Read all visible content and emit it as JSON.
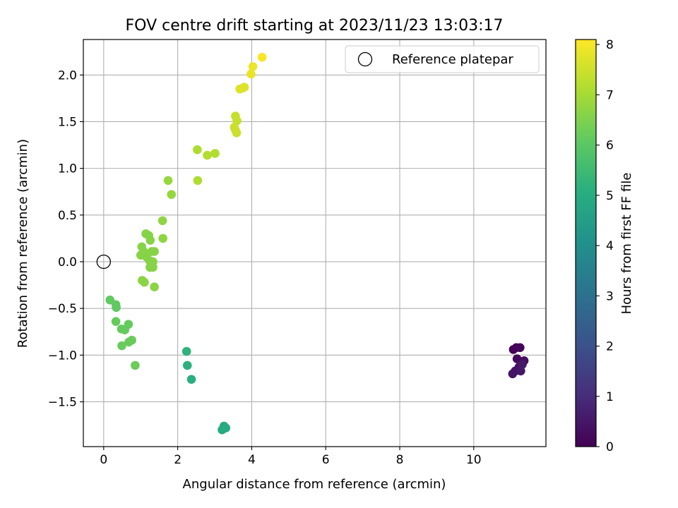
{
  "chart_data": {
    "type": "scatter",
    "title": "FOV centre drift starting at 2023/11/23 13:03:17",
    "xlabel": "Angular distance from reference (arcmin)",
    "ylabel": "Rotation from reference (arcmin)",
    "xlim": [
      -0.55,
      11.95
    ],
    "ylim": [
      -1.98,
      2.38
    ],
    "xticks": [
      0,
      2,
      4,
      6,
      8,
      10
    ],
    "yticks": [
      -1.5,
      -1.0,
      -0.5,
      0.0,
      0.5,
      1.0,
      1.5,
      2.0
    ],
    "xtick_labels": [
      "0",
      "2",
      "4",
      "6",
      "8",
      "10"
    ],
    "ytick_labels": [
      "−1.5",
      "−1.0",
      "−0.5",
      "0.0",
      "0.5",
      "1.0",
      "1.5",
      "2.0"
    ],
    "grid": true,
    "legend": {
      "label": "Reference platepar",
      "placement": "top-right"
    },
    "reference_point": {
      "x": 0,
      "y": 0
    },
    "colorbar": {
      "label": "Hours from first FF file",
      "colormap": "viridis",
      "range": [
        0,
        8.1
      ],
      "ticks": [
        0,
        1,
        2,
        3,
        4,
        5,
        6,
        7,
        8
      ],
      "tick_labels": [
        "0",
        "1",
        "2",
        "3",
        "4",
        "5",
        "6",
        "7",
        "8"
      ]
    },
    "points": [
      {
        "x": 11.07,
        "y": -0.94,
        "h": 0.05
      },
      {
        "x": 11.15,
        "y": -0.92,
        "h": 0.1
      },
      {
        "x": 11.25,
        "y": -0.92,
        "h": 0.15
      },
      {
        "x": 11.17,
        "y": -1.04,
        "h": 0.2
      },
      {
        "x": 11.28,
        "y": -1.07,
        "h": 0.25
      },
      {
        "x": 11.36,
        "y": -1.06,
        "h": 0.3
      },
      {
        "x": 11.22,
        "y": -1.13,
        "h": 0.35
      },
      {
        "x": 11.12,
        "y": -1.17,
        "h": 0.4
      },
      {
        "x": 11.05,
        "y": -1.2,
        "h": 0.45
      },
      {
        "x": 11.27,
        "y": -1.17,
        "h": 0.5
      },
      {
        "x": 11.31,
        "y": -1.1,
        "h": 0.55
      },
      {
        "x": 3.2,
        "y": -1.8,
        "h": 4.95
      },
      {
        "x": 3.25,
        "y": -1.76,
        "h": 4.95
      },
      {
        "x": 3.3,
        "y": -1.78,
        "h": 4.95
      },
      {
        "x": 2.37,
        "y": -1.26,
        "h": 5.1
      },
      {
        "x": 2.26,
        "y": -1.11,
        "h": 5.15
      },
      {
        "x": 2.24,
        "y": -0.96,
        "h": 5.2
      },
      {
        "x": 0.17,
        "y": -0.41,
        "h": 6.1
      },
      {
        "x": 0.33,
        "y": -0.46,
        "h": 6.1
      },
      {
        "x": 0.34,
        "y": -0.49,
        "h": 6.1
      },
      {
        "x": 0.33,
        "y": -0.64,
        "h": 6.15
      },
      {
        "x": 0.48,
        "y": -0.72,
        "h": 6.15
      },
      {
        "x": 0.57,
        "y": -0.73,
        "h": 6.15
      },
      {
        "x": 0.67,
        "y": -0.67,
        "h": 6.15
      },
      {
        "x": 0.76,
        "y": -0.84,
        "h": 6.2
      },
      {
        "x": 0.68,
        "y": -0.86,
        "h": 6.2
      },
      {
        "x": 0.49,
        "y": -0.9,
        "h": 6.2
      },
      {
        "x": 0.85,
        "y": -1.11,
        "h": 6.25
      },
      {
        "x": 1.03,
        "y": 0.16,
        "h": 6.6
      },
      {
        "x": 1.14,
        "y": 0.3,
        "h": 6.6
      },
      {
        "x": 1.22,
        "y": 0.28,
        "h": 6.6
      },
      {
        "x": 1.26,
        "y": 0.23,
        "h": 6.6
      },
      {
        "x": 1.0,
        "y": 0.07,
        "h": 6.6
      },
      {
        "x": 1.08,
        "y": 0.11,
        "h": 6.6
      },
      {
        "x": 1.16,
        "y": 0.05,
        "h": 6.6
      },
      {
        "x": 1.24,
        "y": 0.01,
        "h": 6.6
      },
      {
        "x": 1.3,
        "y": 0.11,
        "h": 6.6
      },
      {
        "x": 1.37,
        "y": 0.11,
        "h": 6.6
      },
      {
        "x": 1.33,
        "y": 0.0,
        "h": 6.6
      },
      {
        "x": 1.25,
        "y": -0.06,
        "h": 6.6
      },
      {
        "x": 1.33,
        "y": -0.06,
        "h": 6.6
      },
      {
        "x": 1.04,
        "y": -0.2,
        "h": 6.65
      },
      {
        "x": 1.1,
        "y": -0.22,
        "h": 6.65
      },
      {
        "x": 1.37,
        "y": -0.27,
        "h": 6.65
      },
      {
        "x": 1.6,
        "y": 0.25,
        "h": 6.7
      },
      {
        "x": 1.59,
        "y": 0.44,
        "h": 6.7
      },
      {
        "x": 1.74,
        "y": 0.87,
        "h": 6.8
      },
      {
        "x": 1.83,
        "y": 0.72,
        "h": 6.8
      },
      {
        "x": 2.54,
        "y": 0.87,
        "h": 7.1
      },
      {
        "x": 2.53,
        "y": 1.2,
        "h": 7.1
      },
      {
        "x": 2.8,
        "y": 1.14,
        "h": 7.15
      },
      {
        "x": 3.01,
        "y": 1.16,
        "h": 7.15
      },
      {
        "x": 3.56,
        "y": 1.56,
        "h": 7.4
      },
      {
        "x": 3.6,
        "y": 1.51,
        "h": 7.4
      },
      {
        "x": 3.53,
        "y": 1.44,
        "h": 7.45
      },
      {
        "x": 3.56,
        "y": 1.41,
        "h": 7.45
      },
      {
        "x": 3.59,
        "y": 1.38,
        "h": 7.45
      },
      {
        "x": 3.68,
        "y": 1.85,
        "h": 7.7
      },
      {
        "x": 3.76,
        "y": 1.86,
        "h": 7.7
      },
      {
        "x": 3.8,
        "y": 1.87,
        "h": 7.7
      },
      {
        "x": 3.98,
        "y": 2.01,
        "h": 7.85
      },
      {
        "x": 4.03,
        "y": 2.09,
        "h": 7.9
      },
      {
        "x": 4.28,
        "y": 2.19,
        "h": 8.05
      }
    ]
  }
}
